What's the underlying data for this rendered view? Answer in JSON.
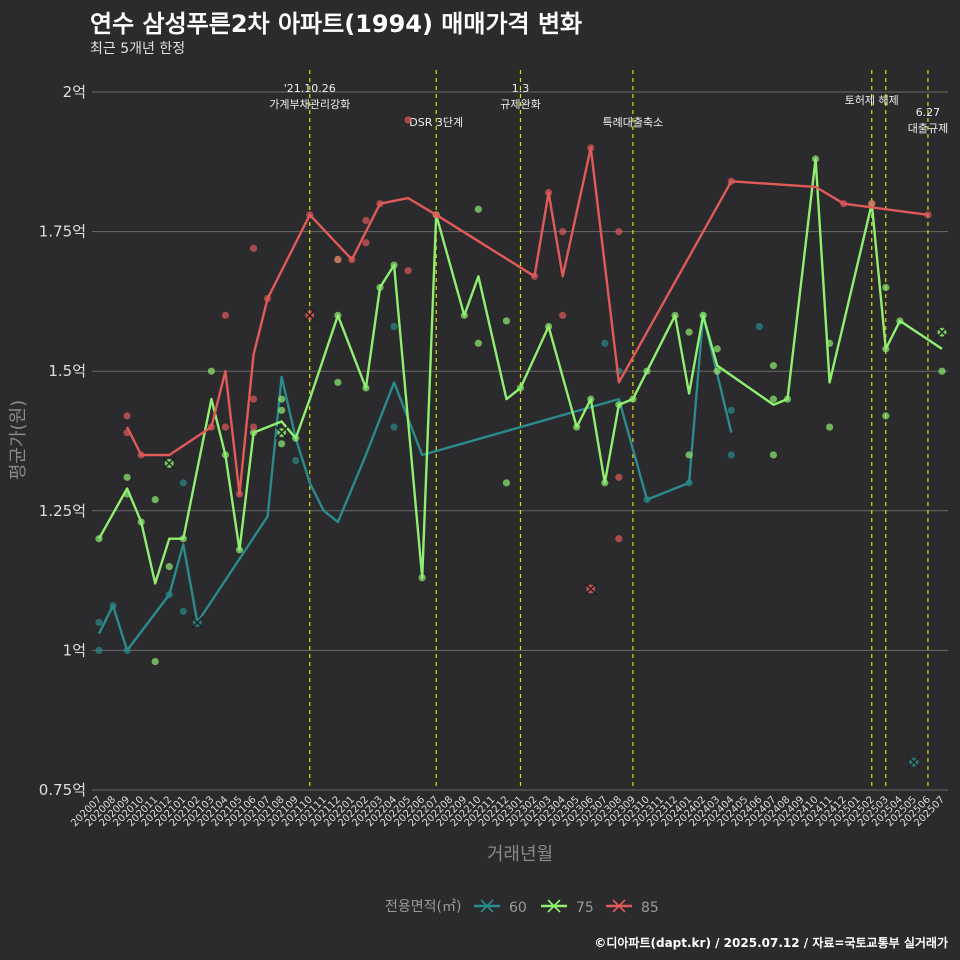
{
  "title": "연수 삼성푸른2차 아파트(1994) 매매가격 변화",
  "subtitle": "최근 5개년 한정",
  "caption": "©디아파트(dapt.kr) / 2025.07.12 / 자료=국토교통부 실거래가",
  "chart_data": {
    "type": "line",
    "xlabel": "거래년월",
    "ylabel": "평균가(원)",
    "ylim": [
      0.75,
      2.0
    ],
    "yticks": [
      0.75,
      1.0,
      1.25,
      1.5,
      1.75,
      2.0
    ],
    "ytick_labels": [
      "0.75억",
      "1억",
      "1.25억",
      "1.5억",
      "1.75억",
      "2억"
    ],
    "categories": [
      "202007",
      "202008",
      "202009",
      "202010",
      "202011",
      "202012",
      "202101",
      "202102",
      "202103",
      "202104",
      "202105",
      "202106",
      "202107",
      "202108",
      "202109",
      "202110",
      "202111",
      "202112",
      "202201",
      "202202",
      "202203",
      "202204",
      "202205",
      "202206",
      "202207",
      "202208",
      "202209",
      "202210",
      "202211",
      "202212",
      "202301",
      "202302",
      "202303",
      "202304",
      "202305",
      "202306",
      "202307",
      "202308",
      "202309",
      "202310",
      "202311",
      "202312",
      "202401",
      "202402",
      "202403",
      "202404",
      "202405",
      "202406",
      "202407",
      "202408",
      "202409",
      "202410",
      "202411",
      "202412",
      "202501",
      "202502",
      "202503",
      "202504",
      "202505",
      "202506",
      "202507"
    ],
    "events": [
      {
        "x": "202110",
        "label": "'21.10.26\n가계부채관리강화"
      },
      {
        "x": "202207",
        "label": "DSR 3단계"
      },
      {
        "x": "202301",
        "label": "1.3\n규제완화"
      },
      {
        "x": "202309",
        "label": "특례대출축소"
      },
      {
        "x": "202502",
        "label": "토허제 해제"
      },
      {
        "x": "202503",
        "label": ""
      },
      {
        "x": "202506",
        "label": "6.27\n대출규제"
      }
    ],
    "legend_title": "전용면적(㎡)",
    "legend_position": "bottom",
    "series": [
      {
        "name": "60",
        "color": "#2a8a8c",
        "line": [
          [
            "202007",
            1.03
          ],
          [
            "202008",
            1.08
          ],
          [
            "202009",
            1.0
          ],
          [
            "202012",
            1.1
          ],
          [
            "202101",
            1.19
          ],
          [
            "202102",
            1.05
          ],
          [
            "202107",
            1.24
          ],
          [
            "202108",
            1.49
          ],
          [
            "202109",
            1.38
          ],
          [
            "202110",
            1.3
          ],
          [
            "202111",
            1.25
          ],
          [
            "202112",
            1.23
          ],
          [
            "202202",
            1.35
          ],
          [
            "202204",
            1.48
          ],
          [
            "202206",
            1.35
          ],
          [
            "202308",
            1.45
          ],
          [
            "202310",
            1.27
          ],
          [
            "202401",
            1.3
          ],
          [
            "202402",
            1.6
          ],
          [
            "202404",
            1.39
          ]
        ],
        "points": [
          [
            "202007",
            1.05
          ],
          [
            "202007",
            1.0
          ],
          [
            "202008",
            1.08
          ],
          [
            "202009",
            1.0
          ],
          [
            "202012",
            1.1
          ],
          [
            "202101",
            1.3
          ],
          [
            "202101",
            1.07
          ],
          [
            "202109",
            1.34
          ],
          [
            "202204",
            1.4
          ],
          [
            "202204",
            1.58
          ],
          [
            "202308",
            1.5
          ],
          [
            "202307",
            1.55
          ],
          [
            "202310",
            1.27
          ],
          [
            "202401",
            1.3
          ],
          [
            "202402",
            1.6
          ],
          [
            "202404",
            1.43
          ],
          [
            "202404",
            1.35
          ],
          [
            "202406",
            1.58
          ]
        ],
        "crosses": [
          [
            "202102",
            1.05
          ],
          [
            "202505",
            0.8
          ]
        ]
      },
      {
        "name": "75",
        "color": "#90ee70",
        "line": [
          [
            "202007",
            1.2
          ],
          [
            "202009",
            1.29
          ],
          [
            "202010",
            1.23
          ],
          [
            "202011",
            1.12
          ],
          [
            "202012",
            1.2
          ],
          [
            "202101",
            1.2
          ],
          [
            "202103",
            1.45
          ],
          [
            "202104",
            1.35
          ],
          [
            "202105",
            1.18
          ],
          [
            "202106",
            1.39
          ],
          [
            "202108",
            1.41
          ],
          [
            "202109",
            1.38
          ],
          [
            "202110",
            1.45
          ],
          [
            "202112",
            1.6
          ],
          [
            "202202",
            1.47
          ],
          [
            "202203",
            1.65
          ],
          [
            "202204",
            1.69
          ],
          [
            "202206",
            1.13
          ],
          [
            "202207",
            1.78
          ],
          [
            "202209",
            1.6
          ],
          [
            "202210",
            1.67
          ],
          [
            "202212",
            1.45
          ],
          [
            "202301",
            1.47
          ],
          [
            "202303",
            1.58
          ],
          [
            "202305",
            1.4
          ],
          [
            "202306",
            1.45
          ],
          [
            "202307",
            1.3
          ],
          [
            "202308",
            1.44
          ],
          [
            "202309",
            1.45
          ],
          [
            "202310",
            1.5
          ],
          [
            "202312",
            1.6
          ],
          [
            "202401",
            1.46
          ],
          [
            "202402",
            1.6
          ],
          [
            "202403",
            1.51
          ],
          [
            "202407",
            1.44
          ],
          [
            "202408",
            1.45
          ],
          [
            "202410",
            1.88
          ],
          [
            "202411",
            1.48
          ],
          [
            "202502",
            1.8
          ],
          [
            "202503",
            1.54
          ],
          [
            "202504",
            1.59
          ],
          [
            "202507",
            1.54
          ]
        ],
        "points": [
          [
            "202007",
            1.2
          ],
          [
            "202009",
            1.31
          ],
          [
            "202009",
            1.28
          ],
          [
            "202010",
            1.23
          ],
          [
            "202011",
            1.27
          ],
          [
            "202011",
            0.98
          ],
          [
            "202012",
            1.15
          ],
          [
            "202101",
            1.2
          ],
          [
            "202103",
            1.5
          ],
          [
            "202104",
            1.35
          ],
          [
            "202105",
            1.18
          ],
          [
            "202106",
            1.39
          ],
          [
            "202108",
            1.45
          ],
          [
            "202108",
            1.43
          ],
          [
            "202108",
            1.37
          ],
          [
            "202109",
            1.38
          ],
          [
            "202112",
            1.7
          ],
          [
            "202112",
            1.6
          ],
          [
            "202112",
            1.48
          ],
          [
            "202202",
            1.47
          ],
          [
            "202203",
            1.65
          ],
          [
            "202204",
            1.69
          ],
          [
            "202206",
            1.13
          ],
          [
            "202207",
            1.78
          ],
          [
            "202209",
            1.6
          ],
          [
            "202210",
            1.79
          ],
          [
            "202210",
            1.55
          ],
          [
            "202212",
            1.59
          ],
          [
            "202212",
            1.3
          ],
          [
            "202301",
            1.47
          ],
          [
            "202303",
            1.58
          ],
          [
            "202305",
            1.4
          ],
          [
            "202306",
            1.45
          ],
          [
            "202307",
            1.3
          ],
          [
            "202308",
            1.44
          ],
          [
            "202309",
            1.45
          ],
          [
            "202310",
            1.5
          ],
          [
            "202312",
            1.6
          ],
          [
            "202401",
            1.57
          ],
          [
            "202401",
            1.35
          ],
          [
            "202402",
            1.6
          ],
          [
            "202403",
            1.54
          ],
          [
            "202403",
            1.5
          ],
          [
            "202407",
            1.51
          ],
          [
            "202407",
            1.45
          ],
          [
            "202407",
            1.35
          ],
          [
            "202408",
            1.45
          ],
          [
            "202410",
            1.88
          ],
          [
            "202411",
            1.55
          ],
          [
            "202411",
            1.4
          ],
          [
            "202502",
            1.8
          ],
          [
            "202503",
            1.65
          ],
          [
            "202503",
            1.42
          ],
          [
            "202503",
            1.54
          ],
          [
            "202504",
            1.59
          ],
          [
            "202507",
            1.5
          ]
        ],
        "crosses": [
          [
            "202012",
            1.335
          ],
          [
            "202108",
            1.39
          ],
          [
            "202507",
            1.57
          ]
        ]
      },
      {
        "name": "85",
        "color": "#e05a5a",
        "line": [
          [
            "202009",
            1.4
          ],
          [
            "202010",
            1.35
          ],
          [
            "202012",
            1.35
          ],
          [
            "202103",
            1.4
          ],
          [
            "202104",
            1.5
          ],
          [
            "202105",
            1.28
          ],
          [
            "202106",
            1.53
          ],
          [
            "202107",
            1.63
          ],
          [
            "202110",
            1.78
          ],
          [
            "202201",
            1.7
          ],
          [
            "202203",
            1.8
          ],
          [
            "202205",
            1.81
          ],
          [
            "202207",
            1.78
          ],
          [
            "202302",
            1.67
          ],
          [
            "202303",
            1.82
          ],
          [
            "202304",
            1.67
          ],
          [
            "202306",
            1.9
          ],
          [
            "202308",
            1.48
          ],
          [
            "202404",
            1.84
          ],
          [
            "202410",
            1.83
          ],
          [
            "202412",
            1.8
          ],
          [
            "202506",
            1.78
          ]
        ],
        "points": [
          [
            "202009",
            1.42
          ],
          [
            "202009",
            1.39
          ],
          [
            "202010",
            1.35
          ],
          [
            "202103",
            1.4
          ],
          [
            "202104",
            1.6
          ],
          [
            "202104",
            1.4
          ],
          [
            "202105",
            1.28
          ],
          [
            "202106",
            1.72
          ],
          [
            "202106",
            1.45
          ],
          [
            "202106",
            1.4
          ],
          [
            "202107",
            1.63
          ],
          [
            "202110",
            1.78
          ],
          [
            "202112",
            1.7
          ],
          [
            "202201",
            1.7
          ],
          [
            "202202",
            1.77
          ],
          [
            "202202",
            1.73
          ],
          [
            "202203",
            1.8
          ],
          [
            "202205",
            1.95
          ],
          [
            "202205",
            1.68
          ],
          [
            "202207",
            1.78
          ],
          [
            "202302",
            1.67
          ],
          [
            "202303",
            1.82
          ],
          [
            "202304",
            1.75
          ],
          [
            "202304",
            1.6
          ],
          [
            "202306",
            1.9
          ],
          [
            "202308",
            1.75
          ],
          [
            "202308",
            1.31
          ],
          [
            "202308",
            1.2
          ],
          [
            "202404",
            1.84
          ],
          [
            "202412",
            1.8
          ],
          [
            "202502",
            1.8
          ],
          [
            "202506",
            1.78
          ]
        ],
        "crosses": [
          [
            "202110",
            1.6
          ],
          [
            "202306",
            1.11
          ]
        ]
      }
    ]
  }
}
